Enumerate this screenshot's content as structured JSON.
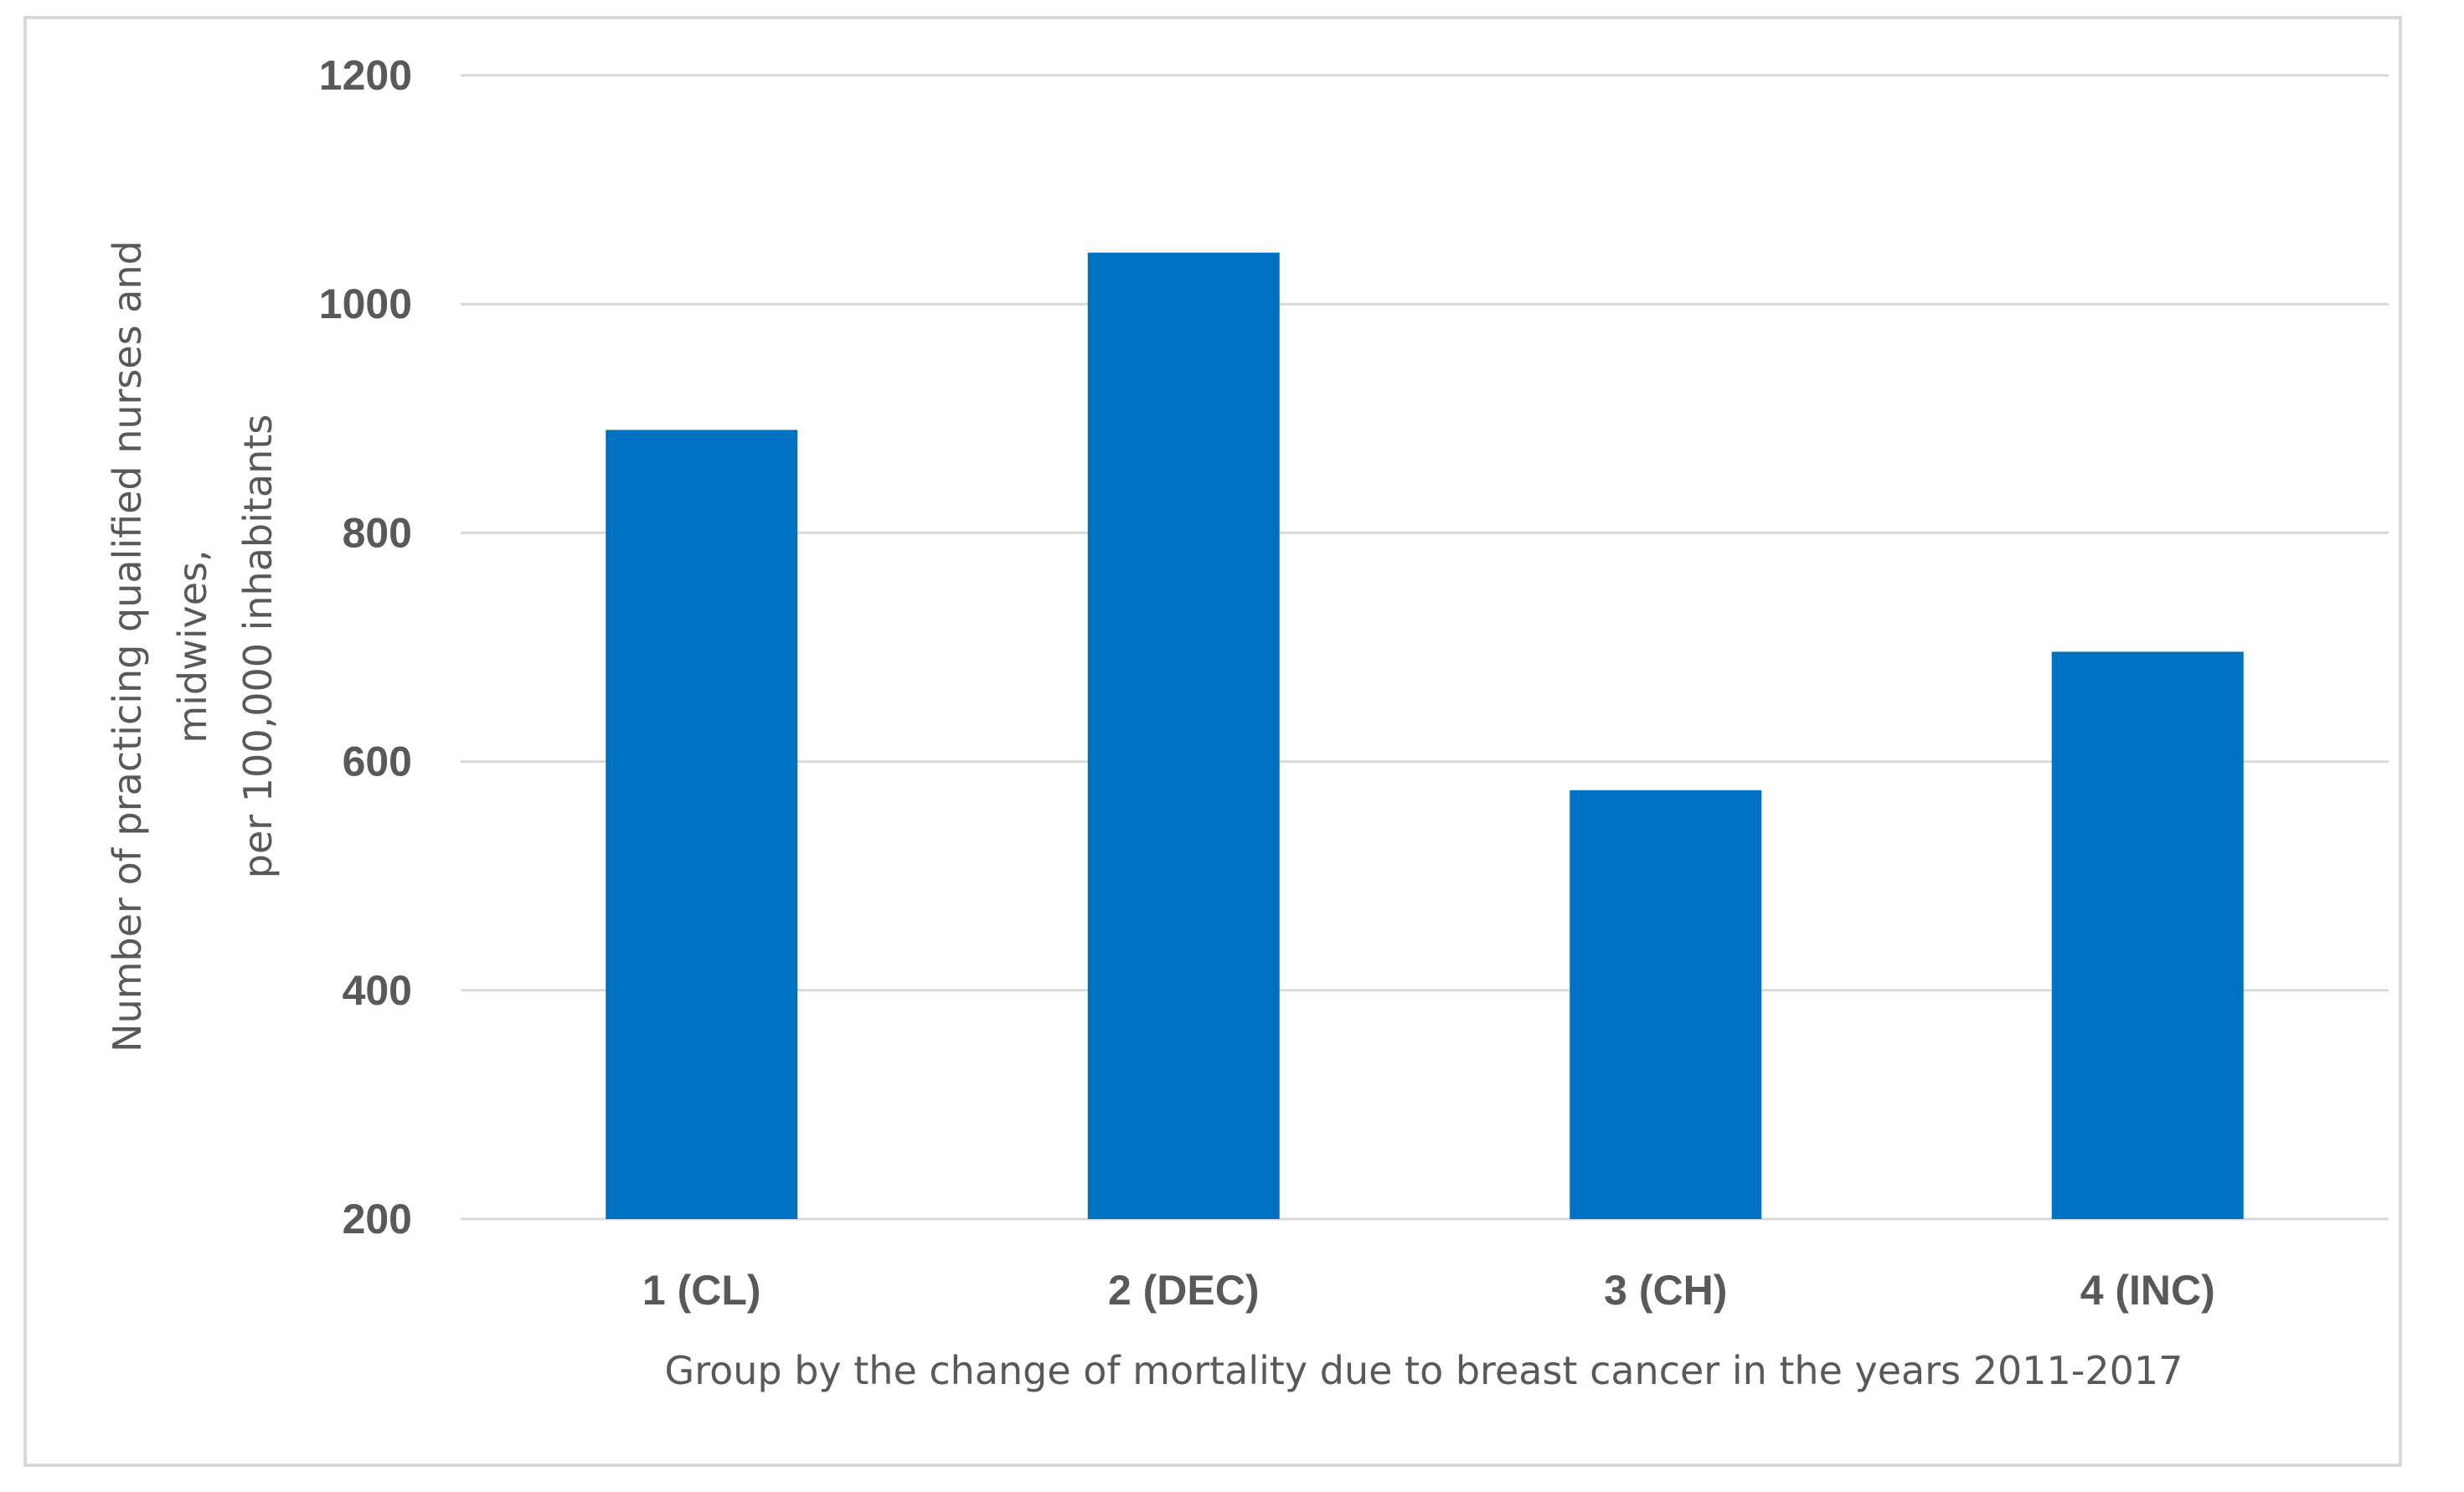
{
  "chart_data": {
    "type": "bar",
    "title": "",
    "categories": [
      "1 (CL)",
      "2 (DEC)",
      "3 (CH)",
      "4 (INC)"
    ],
    "values": [
      890,
      1045,
      575,
      696
    ],
    "xlabel": "Group by the change of mortality due to breast cancer in the years 2011-2017",
    "ylabel_lines": [
      "Number of practicing qualified nurses and",
      "midwives,",
      "per 100,000 inhabitants"
    ],
    "ylim": [
      200,
      1200
    ],
    "yticks": [
      200,
      400,
      600,
      800,
      1000,
      1200
    ],
    "grid": true,
    "legend": "none",
    "bar_color": "#0070C0",
    "grid_color": "#D9D9D9"
  }
}
